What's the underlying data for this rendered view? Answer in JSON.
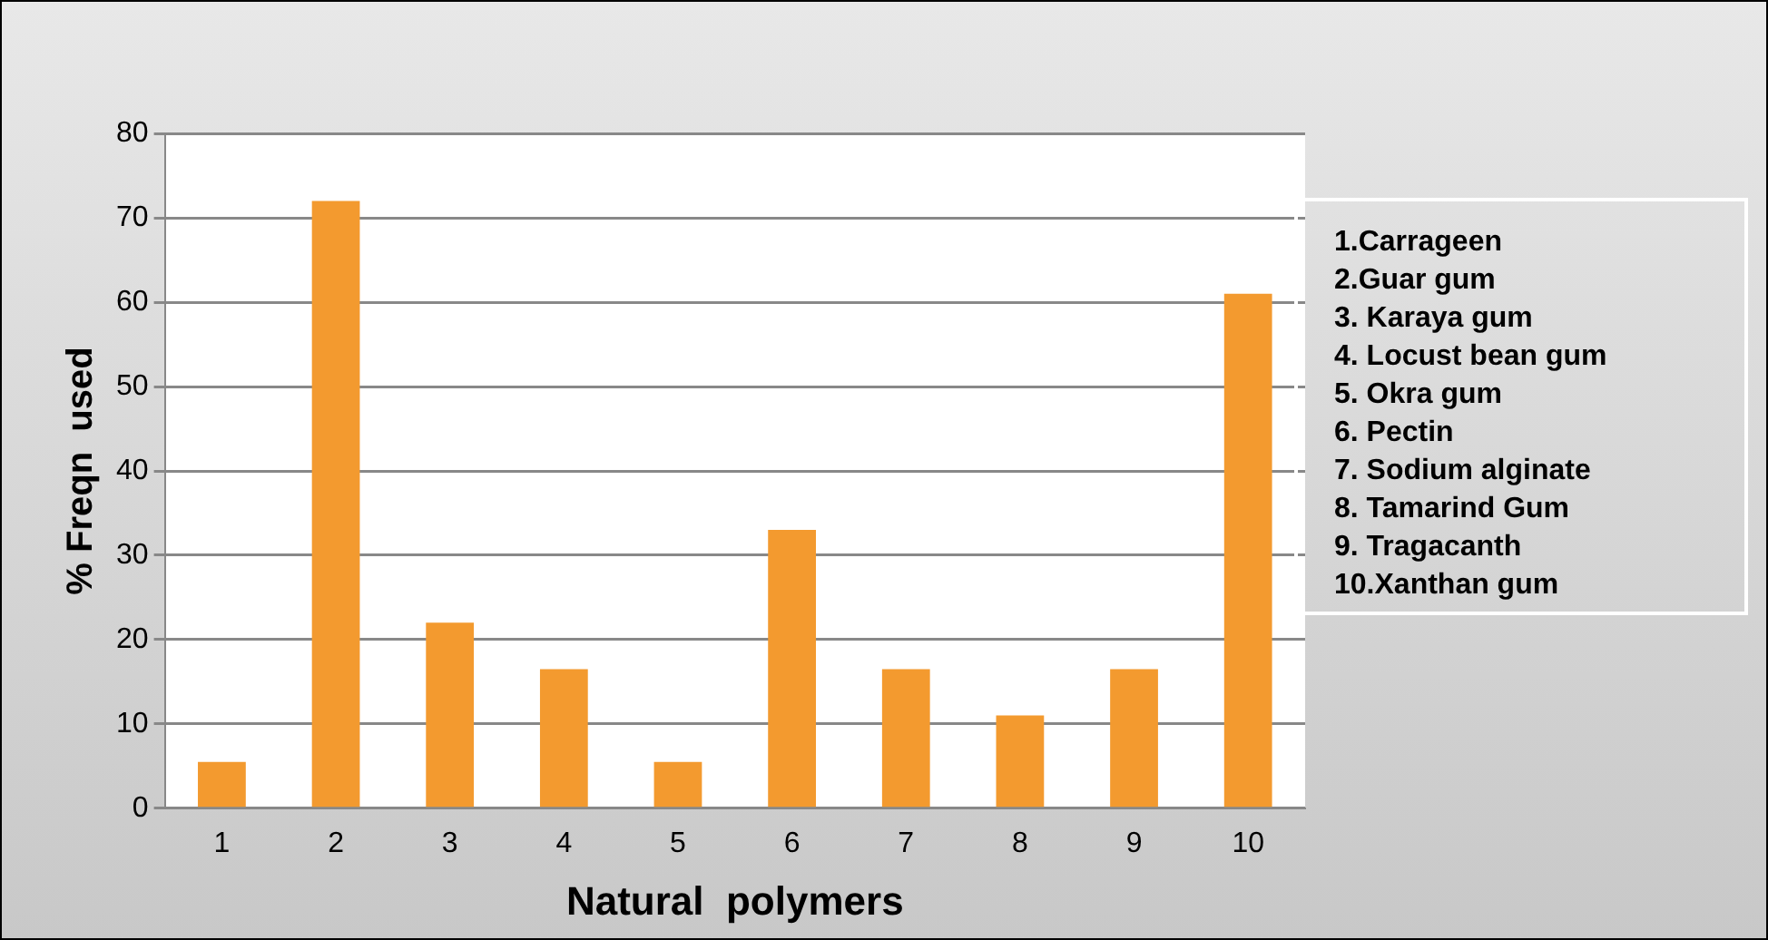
{
  "chart_data": {
    "type": "bar",
    "xlabel": "Natural  polymers",
    "ylabel": "% Freqn  used",
    "categories": [
      "1",
      "2",
      "3",
      "4",
      "5",
      "6",
      "7",
      "8",
      "9",
      "10"
    ],
    "values": [
      5.5,
      72,
      22,
      16.5,
      5.5,
      33,
      16.5,
      11,
      16.5,
      61
    ],
    "color": "#f39a2f",
    "ylim": [
      0,
      80
    ],
    "yticks": [
      0,
      10,
      20,
      30,
      40,
      50,
      60,
      70,
      80
    ],
    "grid": "y",
    "annotations": [
      "1.Carrageen",
      "2.Guar gum",
      "3. Karaya gum",
      "4. Locust bean gum",
      "5. Okra gum",
      "6. Pectin",
      "7. Sodium alginate",
      "8. Tamarind Gum",
      "9. Tragacanth",
      "10.Xanthan gum"
    ]
  }
}
